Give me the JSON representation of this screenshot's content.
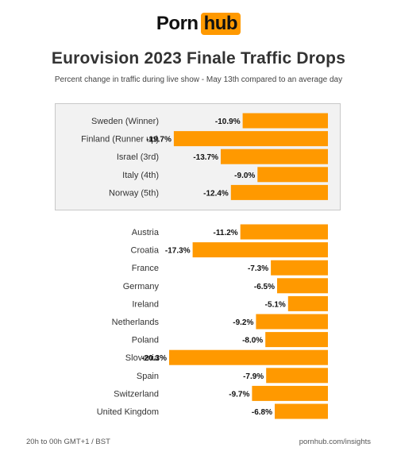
{
  "logo": {
    "part1": "Porn",
    "part2": "hub"
  },
  "header": {
    "title": "Eurovision 2023 Finale Traffic Drops",
    "subtitle": "Percent change in traffic during live show - May 13th compared to an average day"
  },
  "colors": {
    "bar": "#ff9900",
    "highlight_bg": "#f2f2f2"
  },
  "footer": {
    "left": "20h to 00h GMT+1 / BST",
    "right": "pornhub.com/insights"
  },
  "chart_data": {
    "type": "bar",
    "orientation": "horizontal",
    "title": "Eurovision 2023 Finale Traffic Drops",
    "subtitle": "Percent change in traffic during live show - May 13th compared to an average day",
    "groups": [
      {
        "highlighted": true,
        "categories": [
          "Sweden (Winner)",
          "Finland (Runner up)",
          "Israel (3rd)",
          "Italy (4th)",
          "Norway (5th)"
        ],
        "values": [
          -10.9,
          -19.7,
          -13.7,
          -9.0,
          -12.4
        ],
        "labels": [
          "-10.9%",
          "-19.7%",
          "-13.7%",
          "-9.0%",
          "-12.4%"
        ]
      },
      {
        "highlighted": false,
        "categories": [
          "Austria",
          "Croatia",
          "France",
          "Germany",
          "Ireland",
          "Netherlands",
          "Poland",
          "Slovenia",
          "Spain",
          "Switzerland",
          "United Kingdom"
        ],
        "values": [
          -11.2,
          -17.3,
          -7.3,
          -6.5,
          -5.1,
          -9.2,
          -8.0,
          -20.3,
          -7.9,
          -9.7,
          -6.8
        ],
        "labels": [
          "-11.2%",
          "-17.3%",
          "-7.3%",
          "-6.5%",
          "-5.1%",
          "-9.2%",
          "-8.0%",
          "-20.3%",
          "-7.9%",
          "-9.7%",
          "-6.8%"
        ]
      }
    ],
    "xlim": [
      -20.3,
      0
    ],
    "grid": false
  }
}
